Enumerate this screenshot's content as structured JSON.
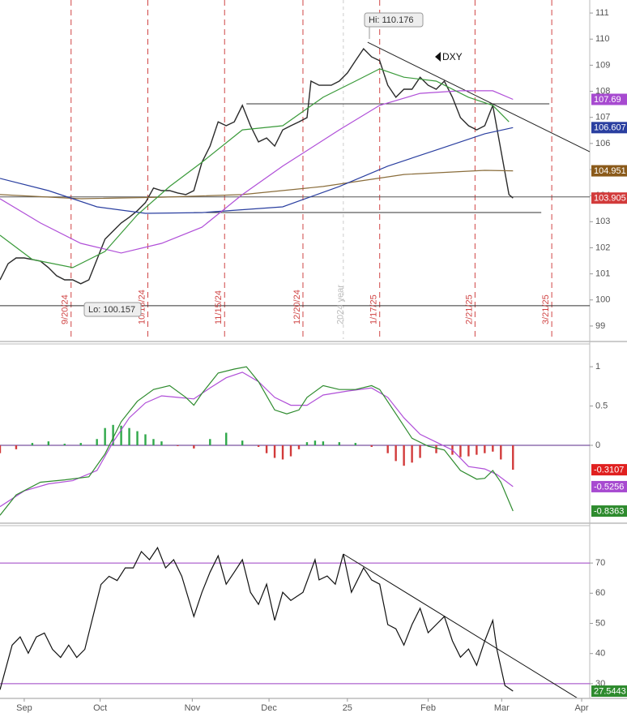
{
  "chart_data": [
    {
      "type": "line",
      "title": "DXY",
      "annotations": [
        "Hi: 110.176",
        "Lo: 100.157"
      ],
      "xlim": [
        0,
        146
      ],
      "ylim": [
        98.5,
        111.5
      ],
      "yticks": [
        99,
        100,
        101,
        102,
        103,
        104,
        105,
        106,
        107,
        108,
        109,
        110,
        111
      ],
      "grid": false,
      "series": [
        {
          "kind": "line",
          "color": "#2a2a2a",
          "label_last": true,
          "label_color": "#d23b3b",
          "x": [
            0,
            2,
            4,
            6,
            8,
            10,
            12,
            14,
            16,
            18,
            20,
            22,
            24,
            26,
            28,
            30,
            32,
            34,
            36,
            38,
            40,
            42,
            44,
            46,
            48,
            50,
            52,
            54,
            56,
            58,
            60,
            62,
            64,
            66,
            68,
            70,
            72,
            74,
            76,
            77,
            79,
            82,
            84,
            86,
            88,
            90,
            92,
            94,
            96,
            98,
            100,
            102,
            104,
            106,
            108,
            110,
            112,
            114,
            116,
            118,
            120,
            122,
            124,
            126,
            127
          ],
          "values": [
            100.77,
            101.39,
            101.61,
            101.61,
            101.55,
            101.49,
            101.24,
            100.93,
            100.77,
            100.77,
            100.62,
            100.77,
            101.55,
            102.33,
            102.64,
            102.95,
            103.17,
            103.42,
            103.73,
            104.29,
            104.19,
            104.19,
            104.1,
            104.04,
            104.19,
            105.28,
            105.9,
            106.83,
            106.68,
            106.83,
            107.46,
            106.68,
            106.06,
            106.21,
            105.9,
            106.52,
            106.68,
            106.83,
            106.99,
            108.39,
            108.23,
            108.23,
            108.39,
            108.7,
            109.17,
            109.63,
            109.32,
            109.17,
            108.23,
            107.77,
            108.08,
            108.08,
            108.54,
            108.23,
            108.08,
            108.39,
            107.77,
            106.99,
            106.68,
            106.52,
            106.68,
            107.46,
            105.75,
            104.04,
            103.905
          ]
        },
        {
          "kind": "line",
          "color": "#8a6d3b",
          "label_last": true,
          "label_color": "#8a5a1a",
          "x": [
            0,
            20,
            40,
            60,
            80,
            100,
            120,
            127
          ],
          "values": [
            104.04,
            103.88,
            103.94,
            104.04,
            104.35,
            104.81,
            104.97,
            104.951
          ]
        },
        {
          "kind": "line",
          "color": "#2a3fa0",
          "label_last": true,
          "label_color": "#2a3fa0",
          "x": [
            0,
            12,
            24,
            36,
            50,
            70,
            84,
            96,
            108,
            120,
            127
          ],
          "values": [
            104.66,
            104.19,
            103.57,
            103.32,
            103.35,
            103.57,
            104.35,
            105.13,
            105.75,
            106.37,
            106.607
          ]
        },
        {
          "kind": "line",
          "color": "#b04fd8",
          "label_last": true,
          "label_color": "#a74ad0",
          "x": [
            0,
            10,
            20,
            30,
            40,
            50,
            60,
            70,
            84,
            94,
            104,
            114,
            122,
            127
          ],
          "values": [
            103.88,
            102.95,
            102.17,
            101.8,
            102.17,
            102.79,
            104.04,
            105.13,
            106.52,
            107.46,
            107.92,
            108.02,
            108.02,
            107.69
          ]
        },
        {
          "kind": "line",
          "color": "#3a9a3a",
          "label_last": false,
          "x": [
            0,
            8,
            18,
            26,
            34,
            42,
            50,
            60,
            70,
            80,
            88,
            94,
            100,
            108,
            116,
            122,
            126
          ],
          "values": [
            102.48,
            101.55,
            101.24,
            101.86,
            103.26,
            104.35,
            105.28,
            106.52,
            106.68,
            107.77,
            108.39,
            108.86,
            108.54,
            108.39,
            107.77,
            107.46,
            106.83
          ]
        }
      ],
      "hlines": [
        {
          "x": [
            61,
            136
          ],
          "value": 107.52,
          "color": "#333"
        },
        {
          "x": [
            0,
            146
          ],
          "value": 103.95,
          "color": "#555"
        },
        {
          "x": [
            48,
            134
          ],
          "value": 103.35,
          "color": "#333"
        },
        {
          "x": [
            0,
            146
          ],
          "value": 99.78,
          "color": "#333"
        }
      ],
      "trendlines": [
        {
          "x": [
            91,
            146
          ],
          "values": [
            109.88,
            105.68
          ],
          "color": "#222"
        }
      ],
      "vlines": {
        "x": [
          17.6,
          36.6,
          55.6,
          75,
          94,
          117.6,
          136.6
        ],
        "labels": [
          "9/20/24",
          "10/18/24",
          "11/15/24",
          "12/20/24",
          "1/17/25",
          "2/21/25",
          "3/21/25"
        ],
        "color": "#d04545"
      },
      "year_marker": {
        "x": 85,
        "label": "2024 year"
      }
    },
    {
      "type": "line",
      "xlim": [
        0,
        146
      ],
      "ylim": [
        -0.97,
        1.29
      ],
      "yticks": [
        0,
        0.5,
        1
      ],
      "grid": false,
      "series": [
        {
          "kind": "bar",
          "color": "#2fa84a",
          "neg_color": "#d23b3b",
          "label_last": true,
          "label_color": "#e0201f",
          "x": [
            0,
            4,
            8,
            12,
            16,
            20,
            24,
            26,
            28,
            30,
            32,
            34,
            36,
            38,
            40,
            44,
            48,
            52,
            56,
            60,
            64,
            66,
            68,
            70,
            72,
            74,
            76,
            78,
            80,
            84,
            88,
            92,
            96,
            98,
            100,
            102,
            104,
            108,
            112,
            114,
            116,
            118,
            120,
            122,
            124,
            127
          ],
          "values": [
            -0.1,
            -0.05,
            0.03,
            0.05,
            0.02,
            0.03,
            0.08,
            0.22,
            0.26,
            0.25,
            0.22,
            0.18,
            0.14,
            0.08,
            0.05,
            -0.01,
            -0.04,
            0.08,
            0.16,
            0.06,
            -0.02,
            -0.1,
            -0.16,
            -0.18,
            -0.14,
            -0.05,
            0.04,
            0.06,
            0.05,
            0.04,
            0.03,
            -0.02,
            -0.1,
            -0.2,
            -0.26,
            -0.22,
            -0.16,
            -0.1,
            -0.12,
            -0.15,
            -0.14,
            -0.12,
            -0.1,
            -0.08,
            -0.18,
            -0.3107
          ]
        },
        {
          "kind": "line",
          "color": "#b04fd8",
          "label_last": true,
          "label_color": "#a74ad0",
          "x": [
            0,
            6,
            12,
            18,
            24,
            28,
            32,
            36,
            40,
            44,
            48,
            52,
            56,
            60,
            64,
            68,
            72,
            76,
            80,
            86,
            92,
            96,
            100,
            104,
            108,
            112,
            116,
            120,
            123,
            127
          ],
          "values": [
            -0.78,
            -0.58,
            -0.49,
            -0.45,
            -0.32,
            0.04,
            0.35,
            0.54,
            0.63,
            0.61,
            0.59,
            0.73,
            0.86,
            0.93,
            0.81,
            0.61,
            0.51,
            0.51,
            0.64,
            0.69,
            0.73,
            0.61,
            0.35,
            0.14,
            0.04,
            -0.06,
            -0.27,
            -0.3,
            -0.37,
            -0.5256
          ]
        },
        {
          "kind": "line",
          "color": "#2e8b2e",
          "label_last": true,
          "label_color": "#2e8b2e",
          "x": [
            0,
            4,
            10,
            16,
            22,
            26,
            30,
            34,
            38,
            42,
            46,
            48,
            50,
            54,
            58,
            61,
            64,
            68,
            71,
            74,
            76,
            80,
            84,
            88,
            92,
            94,
            98,
            102,
            106,
            110,
            114,
            118,
            120,
            122,
            124,
            127
          ],
          "values": [
            -0.89,
            -0.63,
            -0.47,
            -0.44,
            -0.4,
            -0.11,
            0.3,
            0.56,
            0.71,
            0.76,
            0.61,
            0.51,
            0.66,
            0.92,
            0.97,
            1.0,
            0.81,
            0.45,
            0.4,
            0.45,
            0.61,
            0.76,
            0.71,
            0.71,
            0.76,
            0.71,
            0.4,
            0.09,
            -0.01,
            -0.06,
            -0.32,
            -0.43,
            -0.42,
            -0.32,
            -0.47,
            -0.8363
          ]
        }
      ],
      "hlines": [
        {
          "value": 0,
          "color": "#5a2a8a"
        }
      ]
    },
    {
      "type": "line",
      "xlim": [
        0,
        146
      ],
      "ylim": [
        25.4,
        82.4
      ],
      "yticks": [
        30,
        40,
        50,
        60,
        70
      ],
      "grid": false,
      "xticks": [
        {
          "value": 6,
          "label": "Sep"
        },
        {
          "value": 24.8,
          "label": "Oct"
        },
        {
          "value": 47.6,
          "label": "Nov"
        },
        {
          "value": 66.6,
          "label": "Dec"
        },
        {
          "value": 86,
          "label": "25"
        },
        {
          "value": 106,
          "label": "Feb"
        },
        {
          "value": 124.2,
          "label": "Mar"
        },
        {
          "value": 144,
          "label": "Apr"
        }
      ],
      "series": [
        {
          "kind": "line",
          "color": "#111",
          "label_last": true,
          "label_color": "#2e8b2e",
          "x": [
            0,
            3,
            5,
            7,
            9,
            11,
            13,
            15,
            17,
            19,
            21,
            23,
            25,
            27,
            29,
            31,
            33,
            35,
            37,
            39,
            41,
            43,
            45,
            48,
            50,
            52,
            54,
            56,
            58,
            60,
            62,
            64,
            66,
            68,
            70,
            72,
            75,
            78,
            79,
            81,
            83,
            85,
            87,
            90,
            92,
            94,
            96,
            98,
            100,
            102,
            104,
            106,
            108,
            110,
            112,
            114,
            116,
            118,
            120,
            122,
            123,
            125,
            127
          ],
          "values": [
            28.0,
            42.8,
            45.5,
            40.1,
            45.5,
            46.8,
            41.4,
            38.7,
            42.8,
            38.7,
            41.4,
            52.2,
            62.9,
            65.6,
            64.2,
            68.4,
            68.4,
            73.8,
            71.1,
            75.1,
            68.4,
            71.1,
            65.6,
            52.3,
            60.3,
            67.0,
            72.4,
            63.0,
            67.0,
            71.1,
            60.3,
            56.3,
            63.0,
            51.0,
            60.3,
            57.6,
            60.3,
            71.1,
            64.4,
            65.7,
            63.0,
            73.0,
            60.3,
            68.4,
            64.4,
            63.0,
            49.6,
            48.2,
            42.8,
            49.6,
            55.0,
            46.9,
            49.6,
            52.3,
            44.2,
            38.8,
            41.5,
            36.1,
            44.2,
            51.0,
            41.5,
            29.4,
            27.5443
          ]
        }
      ],
      "hlines": [
        {
          "value": 70,
          "color": "#9b3fc4"
        },
        {
          "value": 30,
          "color": "#9b3fc4"
        }
      ],
      "trendlines": [
        {
          "x": [
            85,
            146
          ],
          "values": [
            73.0,
            22.7
          ],
          "color": "#111"
        }
      ]
    }
  ]
}
